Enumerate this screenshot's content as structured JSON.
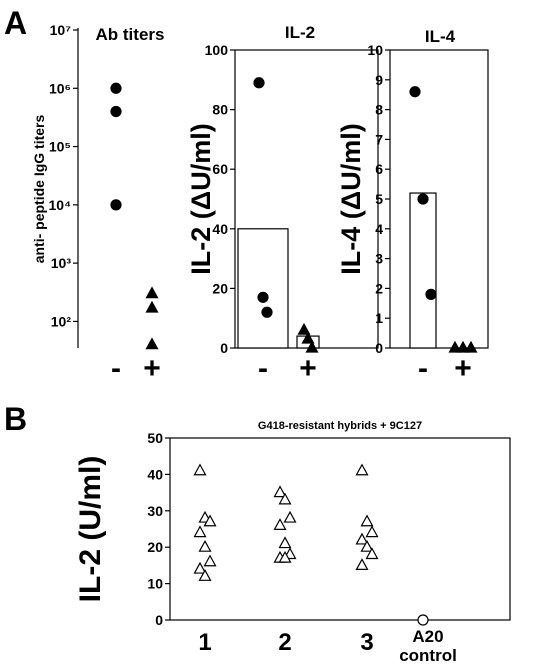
{
  "panel_labels": [
    "A",
    "B"
  ],
  "chart_data": [
    {
      "type": "strip",
      "title": "Ab titers",
      "ylabel": "anti- peptide IgG titers",
      "log_y": true,
      "categories": [
        "-",
        "+"
      ],
      "groups": [
        [
          1000000,
          400000,
          10000
        ],
        [
          300,
          170,
          40
        ]
      ],
      "markers": [
        "filled-circle",
        "filled-triangle"
      ],
      "frame": false,
      "ylim": [
        35,
        10000000
      ],
      "yticks": [
        {
          "value": 100,
          "label": "10²"
        },
        {
          "value": 1000,
          "label": "10³"
        },
        {
          "value": 10000,
          "label": "10⁴"
        },
        {
          "value": 100000,
          "label": "10⁵"
        },
        {
          "value": 1000000,
          "label": "10⁶"
        },
        {
          "value": 10000000,
          "label": "10⁷"
        }
      ]
    },
    {
      "type": "bar-strip",
      "title": "IL-2",
      "ylabel": "IL-2 (ΔU/ml)",
      "categories": [
        "-",
        "+"
      ],
      "bars": [
        40,
        4
      ],
      "groups": [
        [
          89,
          17,
          12
        ],
        [
          6,
          3,
          0
        ]
      ],
      "markers": [
        "filled-circle",
        "filled-triangle"
      ],
      "frame": true,
      "ylim": [
        0,
        100
      ],
      "yticks": [
        0,
        20,
        40,
        60,
        80,
        100
      ]
    },
    {
      "type": "bar-strip",
      "title": "IL-4",
      "ylabel": "IL-4 (ΔU/ml)",
      "categories": [
        "-",
        "+"
      ],
      "bars": [
        5.2,
        0
      ],
      "groups": [
        [
          8.6,
          5.0,
          1.8
        ],
        [
          0,
          0,
          0
        ]
      ],
      "markers": [
        "filled-circle",
        "filled-triangle"
      ],
      "frame": true,
      "ylim": [
        0,
        10
      ],
      "yticks": [
        0,
        1,
        2,
        3,
        4,
        5,
        6,
        7,
        8,
        9,
        10
      ]
    },
    {
      "type": "strip",
      "title": "G418-resistant hybrids + 9C127",
      "ylabel": "IL-2 (U/ml)",
      "categories": [
        "1",
        "2",
        "3",
        "A20 control"
      ],
      "groups": [
        [
          41,
          28,
          27,
          24,
          20,
          16,
          14,
          12
        ],
        [
          35,
          33,
          28,
          26,
          21,
          18,
          17,
          17
        ],
        [
          41,
          27,
          24,
          22,
          20,
          18,
          15
        ],
        [
          0
        ]
      ],
      "markers": [
        "open-triangle",
        "open-triangle",
        "open-triangle",
        "open-circle"
      ],
      "frame": true,
      "ylim": [
        0,
        50
      ],
      "yticks": [
        0,
        10,
        20,
        30,
        40,
        50
      ]
    }
  ]
}
